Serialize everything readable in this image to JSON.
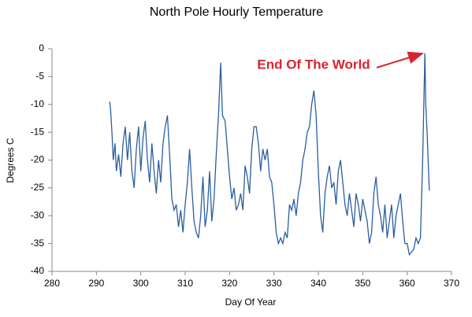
{
  "chart_data": {
    "type": "line",
    "title": "North Pole Hourly Temperature",
    "xlabel": "Day Of Year",
    "ylabel": "Degrees C",
    "annotation": "End Of The World",
    "x": [
      293,
      293.2,
      293.5,
      293.8,
      294.2,
      294.5,
      295,
      295.5,
      296,
      296.5,
      297,
      297.5,
      298,
      298.5,
      299,
      299.5,
      300,
      300.5,
      301,
      301.5,
      302,
      302.5,
      303,
      303.5,
      304,
      304.5,
      305,
      305.5,
      306,
      306.5,
      307,
      307.5,
      308,
      308.5,
      309,
      309.5,
      310,
      310.5,
      311,
      311.5,
      312,
      312.5,
      313,
      313.5,
      314,
      314.5,
      315,
      315.5,
      316,
      316.5,
      317,
      317.5,
      318,
      318.4,
      319,
      319.5,
      320,
      320.5,
      321,
      321.5,
      322,
      322.5,
      323,
      323.5,
      324,
      324.5,
      325,
      325.5,
      326,
      326.5,
      327,
      327.5,
      328,
      328.5,
      329,
      329.5,
      330,
      330.5,
      331,
      331.5,
      332,
      332.5,
      333,
      333.5,
      334,
      334.5,
      335,
      335.5,
      336,
      336.5,
      337,
      337.5,
      338,
      338.5,
      339,
      339.5,
      340,
      340.5,
      341,
      341.5,
      342,
      342.5,
      343,
      343.5,
      344,
      344.5,
      345,
      345.5,
      346,
      346.5,
      347,
      347.5,
      348,
      348.5,
      349,
      349.5,
      350,
      350.5,
      351,
      351.5,
      352,
      352.5,
      353,
      353.5,
      354,
      354.5,
      355,
      355.5,
      356,
      356.5,
      357,
      357.5,
      358,
      358.5,
      359,
      359.5,
      360,
      360.5,
      361,
      361.5,
      362,
      362.5,
      363,
      363.5,
      364,
      364.2,
      364.5,
      365
    ],
    "series": [
      {
        "name": "Temperature",
        "color": "#2a5f9e",
        "values": [
          -9.5,
          -11,
          -15,
          -20,
          -17,
          -22,
          -19,
          -23,
          -17,
          -14,
          -20,
          -15,
          -22,
          -25,
          -18,
          -14,
          -22,
          -16,
          -13,
          -20,
          -24,
          -17,
          -22,
          -26,
          -20,
          -24,
          -17,
          -14,
          -12,
          -19,
          -27,
          -29,
          -28,
          -32,
          -29,
          -33,
          -28,
          -24,
          -18,
          -25,
          -31,
          -33,
          -34,
          -30,
          -23,
          -32,
          -29,
          -22,
          -31,
          -27,
          -19,
          -12,
          -2.5,
          -12,
          -13,
          -18,
          -23,
          -27,
          -25,
          -29,
          -28,
          -26,
          -29,
          -21,
          -23,
          -26,
          -18,
          -14,
          -14,
          -17,
          -22,
          -18,
          -20,
          -18,
          -23,
          -24,
          -28,
          -33,
          -35,
          -34,
          -35,
          -33,
          -34,
          -28,
          -29,
          -27,
          -30,
          -26,
          -24,
          -20,
          -18,
          -15,
          -14,
          -10,
          -7.5,
          -12,
          -22,
          -30,
          -33,
          -26,
          -23,
          -21,
          -25,
          -24,
          -28,
          -22,
          -20,
          -24,
          -28,
          -30,
          -26,
          -29,
          -32,
          -26,
          -28,
          -31,
          -27,
          -29,
          -31,
          -35,
          -33,
          -26,
          -23,
          -28,
          -30,
          -33,
          -28,
          -34,
          -31,
          -28,
          -34,
          -30,
          -28,
          -26,
          -31,
          -35,
          -35,
          -37,
          -36.5,
          -36,
          -34,
          -35,
          -34,
          -20,
          -0.8,
          -10,
          -15,
          -25.5
        ]
      }
    ],
    "xlim": [
      280,
      370
    ],
    "xticks": [
      280,
      290,
      300,
      310,
      320,
      330,
      340,
      350,
      360,
      370
    ],
    "ylim": [
      -40,
      0
    ],
    "yticks": [
      0,
      -5,
      -10,
      -15,
      -20,
      -25,
      -30,
      -35,
      -40
    ],
    "grid": false
  }
}
